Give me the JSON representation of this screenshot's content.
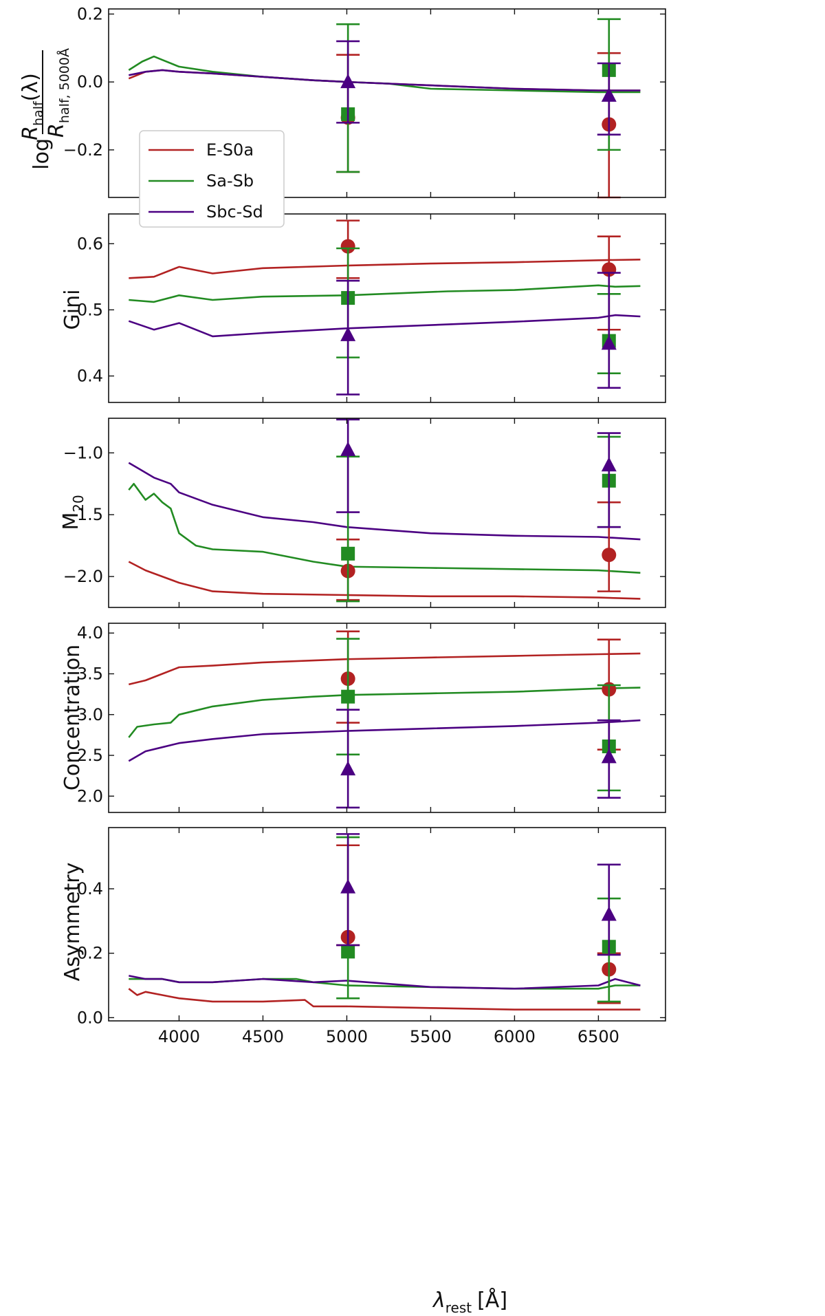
{
  "colors": {
    "E-S0a": "#b22222",
    "Sa-Sb": "#228b22",
    "Sbc-Sd": "#4b0082"
  },
  "chart_data": {
    "type": "line",
    "xlabel_main": "λ",
    "xlabel_sub": "rest",
    "xlabel_unit": "[Å]",
    "xlim": [
      3580,
      6900
    ],
    "xticks": [
      4000,
      4500,
      5000,
      5500,
      6000,
      6500
    ],
    "legend": {
      "location": "center-left",
      "entries": [
        "E-S0a",
        "Sa-Sb",
        "Sbc-Sd"
      ]
    },
    "panels": [
      {
        "id": "rhalf",
        "ylabel": "log R_half(λ)/R_half,5000Å",
        "ylabel_log": "log",
        "ylabel_num": "R",
        "ylabel_num_sub": "half",
        "ylabel_num_rest": "(λ)",
        "ylabel_den": "R",
        "ylabel_den_sub": "half, 5000Å",
        "ylim": [
          -0.34,
          0.215
        ],
        "yticks": [
          -0.2,
          0.0,
          0.2
        ],
        "ytick_labels": [
          "−0.2",
          "0.0",
          "0.2"
        ],
        "series": [
          {
            "name": "E-S0a",
            "x": [
              3700,
              3800,
              3900,
              4000,
              4200,
              4500,
              4800,
              5000,
              5500,
              6000,
              6500,
              6750
            ],
            "y": [
              0.01,
              0.03,
              0.035,
              0.03,
              0.025,
              0.015,
              0.005,
              0.0,
              -0.01,
              -0.02,
              -0.025,
              -0.025
            ]
          },
          {
            "name": "Sa-Sb",
            "x": [
              3700,
              3780,
              3850,
              3900,
              4000,
              4200,
              4500,
              4800,
              5000,
              5250,
              5500,
              6000,
              6500,
              6750
            ],
            "y": [
              0.035,
              0.06,
              0.075,
              0.065,
              0.045,
              0.03,
              0.015,
              0.005,
              0.0,
              -0.005,
              -0.02,
              -0.025,
              -0.03,
              -0.03
            ]
          },
          {
            "name": "Sbc-Sd",
            "x": [
              3700,
              3800,
              3900,
              4000,
              4200,
              4500,
              4800,
              5000,
              5500,
              6000,
              6500,
              6750
            ],
            "y": [
              0.02,
              0.03,
              0.035,
              0.03,
              0.025,
              0.015,
              0.005,
              0.0,
              -0.01,
              -0.02,
              -0.025,
              -0.025
            ]
          }
        ],
        "points": [
          {
            "name": "E-S0a",
            "marker": "circle",
            "x": 5007,
            "y": -0.105,
            "lo": -0.265,
            "hi": 0.08
          },
          {
            "name": "E-S0a",
            "marker": "circle",
            "x": 6563,
            "y": -0.125,
            "lo": -0.34,
            "hi": 0.085
          },
          {
            "name": "Sa-Sb",
            "marker": "square",
            "x": 5007,
            "y": -0.095,
            "lo": -0.265,
            "hi": 0.17
          },
          {
            "name": "Sa-Sb",
            "marker": "square",
            "x": 6563,
            "y": 0.035,
            "lo": -0.2,
            "hi": 0.185
          },
          {
            "name": "Sbc-Sd",
            "marker": "triangle",
            "x": 5007,
            "y": 0.0,
            "lo": -0.12,
            "hi": 0.12
          },
          {
            "name": "Sbc-Sd",
            "marker": "triangle",
            "x": 6563,
            "y": -0.04,
            "lo": -0.155,
            "hi": 0.055
          }
        ]
      },
      {
        "id": "gini",
        "ylabel": "Gini",
        "ylim": [
          0.36,
          0.645
        ],
        "yticks": [
          0.4,
          0.5,
          0.6
        ],
        "ytick_labels": [
          "0.4",
          "0.5",
          "0.6"
        ],
        "series": [
          {
            "name": "E-S0a",
            "x": [
              3700,
              3850,
              4000,
              4200,
              4500,
              5000,
              5500,
              6000,
              6500,
              6750
            ],
            "y": [
              0.548,
              0.55,
              0.565,
              0.555,
              0.563,
              0.567,
              0.57,
              0.572,
              0.575,
              0.576
            ]
          },
          {
            "name": "Sa-Sb",
            "x": [
              3700,
              3850,
              4000,
              4200,
              4500,
              5000,
              5600,
              6000,
              6500,
              6600,
              6750
            ],
            "y": [
              0.515,
              0.512,
              0.522,
              0.515,
              0.52,
              0.522,
              0.528,
              0.53,
              0.537,
              0.535,
              0.536
            ]
          },
          {
            "name": "Sbc-Sd",
            "x": [
              3700,
              3850,
              4000,
              4200,
              4500,
              5000,
              5600,
              6000,
              6500,
              6600,
              6750
            ],
            "y": [
              0.483,
              0.47,
              0.48,
              0.46,
              0.465,
              0.472,
              0.478,
              0.482,
              0.488,
              0.492,
              0.49
            ]
          }
        ],
        "points": [
          {
            "name": "E-S0a",
            "marker": "circle",
            "x": 5007,
            "y": 0.596,
            "lo": 0.548,
            "hi": 0.635
          },
          {
            "name": "E-S0a",
            "marker": "circle",
            "x": 6563,
            "y": 0.561,
            "lo": 0.47,
            "hi": 0.611
          },
          {
            "name": "Sa-Sb",
            "marker": "square",
            "x": 5007,
            "y": 0.518,
            "lo": 0.428,
            "hi": 0.593
          },
          {
            "name": "Sa-Sb",
            "marker": "square",
            "x": 6563,
            "y": 0.453,
            "lo": 0.404,
            "hi": 0.524
          },
          {
            "name": "Sbc-Sd",
            "marker": "triangle",
            "x": 5007,
            "y": 0.462,
            "lo": 0.372,
            "hi": 0.544
          },
          {
            "name": "Sbc-Sd",
            "marker": "triangle",
            "x": 6563,
            "y": 0.449,
            "lo": 0.382,
            "hi": 0.556
          }
        ]
      },
      {
        "id": "m20",
        "ylabel": "M20",
        "ylabel_main": "M",
        "ylabel_sub": "20",
        "ylim": [
          -2.25,
          -0.72
        ],
        "yticks": [
          -2.0,
          -1.5,
          -1.0
        ],
        "ytick_labels": [
          "−2.0",
          "−1.5",
          "−1.0"
        ],
        "series": [
          {
            "name": "E-S0a",
            "x": [
              3700,
              3800,
              3900,
              4000,
              4200,
              4500,
              5000,
              5500,
              6000,
              6500,
              6750
            ],
            "y": [
              -1.88,
              -1.95,
              -2.0,
              -2.05,
              -2.12,
              -2.14,
              -2.15,
              -2.16,
              -2.16,
              -2.17,
              -2.18
            ]
          },
          {
            "name": "Sa-Sb",
            "x": [
              3700,
              3730,
              3800,
              3850,
              3900,
              3950,
              4000,
              4100,
              4200,
              4500,
              4800,
              5000,
              5500,
              6000,
              6500,
              6750
            ],
            "y": [
              -1.3,
              -1.25,
              -1.38,
              -1.33,
              -1.4,
              -1.45,
              -1.65,
              -1.75,
              -1.78,
              -1.8,
              -1.88,
              -1.92,
              -1.93,
              -1.94,
              -1.95,
              -1.97
            ]
          },
          {
            "name": "Sbc-Sd",
            "x": [
              3700,
              3750,
              3850,
              3950,
              4000,
              4200,
              4500,
              4800,
              5000,
              5500,
              6000,
              6500,
              6750
            ],
            "y": [
              -1.08,
              -1.12,
              -1.2,
              -1.25,
              -1.32,
              -1.42,
              -1.52,
              -1.56,
              -1.6,
              -1.65,
              -1.67,
              -1.68,
              -1.7
            ]
          }
        ],
        "points": [
          {
            "name": "E-S0a",
            "marker": "circle",
            "x": 5007,
            "y": -1.955,
            "lo": -2.19,
            "hi": -1.7
          },
          {
            "name": "E-S0a",
            "marker": "circle",
            "x": 6563,
            "y": -1.825,
            "lo": -2.12,
            "hi": -1.4
          },
          {
            "name": "Sa-Sb",
            "marker": "square",
            "x": 5007,
            "y": -1.815,
            "lo": -2.2,
            "hi": -1.03
          },
          {
            "name": "Sa-Sb",
            "marker": "square",
            "x": 6563,
            "y": -1.225,
            "lo": -1.6,
            "hi": -0.87
          },
          {
            "name": "Sbc-Sd",
            "marker": "triangle",
            "x": 5007,
            "y": -0.975,
            "lo": -1.48,
            "hi": -0.73
          },
          {
            "name": "Sbc-Sd",
            "marker": "triangle",
            "x": 6563,
            "y": -1.1,
            "lo": -1.6,
            "hi": -0.84
          }
        ]
      },
      {
        "id": "concentration",
        "ylabel": "Concentration",
        "ylim": [
          1.8,
          4.12
        ],
        "yticks": [
          2.0,
          2.5,
          3.0,
          3.5,
          4.0
        ],
        "ytick_labels": [
          "2.0",
          "2.5",
          "3.0",
          "3.5",
          "4.0"
        ],
        "series": [
          {
            "name": "E-S0a",
            "x": [
              3700,
              3800,
              3900,
              4000,
              4200,
              4500,
              5000,
              5500,
              6000,
              6500,
              6750
            ],
            "y": [
              3.37,
              3.42,
              3.5,
              3.58,
              3.6,
              3.64,
              3.68,
              3.7,
              3.72,
              3.74,
              3.75
            ]
          },
          {
            "name": "Sa-Sb",
            "x": [
              3700,
              3750,
              3850,
              3950,
              4000,
              4100,
              4200,
              4500,
              4800,
              5000,
              5500,
              6000,
              6500,
              6750
            ],
            "y": [
              2.72,
              2.85,
              2.88,
              2.9,
              3.0,
              3.05,
              3.1,
              3.18,
              3.22,
              3.24,
              3.26,
              3.28,
              3.32,
              3.33
            ]
          },
          {
            "name": "Sbc-Sd",
            "x": [
              3700,
              3800,
              3900,
              4000,
              4200,
              4500,
              5000,
              5500,
              6000,
              6500,
              6750
            ],
            "y": [
              2.43,
              2.55,
              2.6,
              2.65,
              2.7,
              2.76,
              2.8,
              2.83,
              2.86,
              2.9,
              2.93
            ]
          }
        ],
        "points": [
          {
            "name": "E-S0a",
            "marker": "circle",
            "x": 5007,
            "y": 3.44,
            "lo": 2.9,
            "hi": 4.02
          },
          {
            "name": "E-S0a",
            "marker": "circle",
            "x": 6563,
            "y": 3.31,
            "lo": 2.57,
            "hi": 3.92
          },
          {
            "name": "Sa-Sb",
            "marker": "square",
            "x": 5007,
            "y": 3.22,
            "lo": 2.51,
            "hi": 3.93
          },
          {
            "name": "Sa-Sb",
            "marker": "square",
            "x": 6563,
            "y": 2.61,
            "lo": 2.07,
            "hi": 3.36
          },
          {
            "name": "Sbc-Sd",
            "marker": "triangle",
            "x": 5007,
            "y": 2.33,
            "lo": 1.86,
            "hi": 3.06
          },
          {
            "name": "Sbc-Sd",
            "marker": "triangle",
            "x": 6563,
            "y": 2.48,
            "lo": 1.98,
            "hi": 2.93
          }
        ]
      },
      {
        "id": "asymmetry",
        "ylabel": "Asymmetry",
        "ylim": [
          -0.01,
          0.59
        ],
        "yticks": [
          0.0,
          0.2,
          0.4
        ],
        "ytick_labels": [
          "0.0",
          "0.2",
          "0.4"
        ],
        "series": [
          {
            "name": "E-S0a",
            "x": [
              3700,
              3750,
              3800,
              3900,
              4000,
              4200,
              4500,
              4750,
              4800,
              5000,
              5500,
              6000,
              6500,
              6750
            ],
            "y": [
              0.09,
              0.07,
              0.08,
              0.07,
              0.06,
              0.05,
              0.05,
              0.055,
              0.035,
              0.035,
              0.03,
              0.025,
              0.025,
              0.025
            ]
          },
          {
            "name": "Sa-Sb",
            "x": [
              3700,
              3800,
              3900,
              4000,
              4200,
              4500,
              4700,
              4800,
              5000,
              5500,
              6000,
              6500,
              6600,
              6750
            ],
            "y": [
              0.12,
              0.12,
              0.12,
              0.11,
              0.11,
              0.12,
              0.12,
              0.11,
              0.1,
              0.095,
              0.09,
              0.09,
              0.1,
              0.1
            ]
          },
          {
            "name": "Sbc-Sd",
            "x": [
              3700,
              3800,
              3900,
              4000,
              4200,
              4500,
              4800,
              5000,
              5500,
              6000,
              6500,
              6600,
              6750
            ],
            "y": [
              0.13,
              0.12,
              0.12,
              0.11,
              0.11,
              0.12,
              0.11,
              0.115,
              0.095,
              0.09,
              0.1,
              0.12,
              0.1
            ]
          }
        ],
        "points": [
          {
            "name": "E-S0a",
            "marker": "circle",
            "x": 5007,
            "y": 0.25,
            "lo": 0.225,
            "hi": 0.535
          },
          {
            "name": "E-S0a",
            "marker": "circle",
            "x": 6563,
            "y": 0.15,
            "lo": 0.045,
            "hi": 0.2
          },
          {
            "name": "Sa-Sb",
            "marker": "square",
            "x": 5007,
            "y": 0.205,
            "lo": 0.06,
            "hi": 0.56
          },
          {
            "name": "Sa-Sb",
            "marker": "square",
            "x": 6563,
            "y": 0.22,
            "lo": 0.05,
            "hi": 0.37
          },
          {
            "name": "Sbc-Sd",
            "marker": "triangle",
            "x": 5007,
            "y": 0.405,
            "lo": 0.225,
            "hi": 0.57
          },
          {
            "name": "Sbc-Sd",
            "marker": "triangle",
            "x": 6563,
            "y": 0.32,
            "lo": 0.195,
            "hi": 0.475
          }
        ]
      }
    ]
  }
}
